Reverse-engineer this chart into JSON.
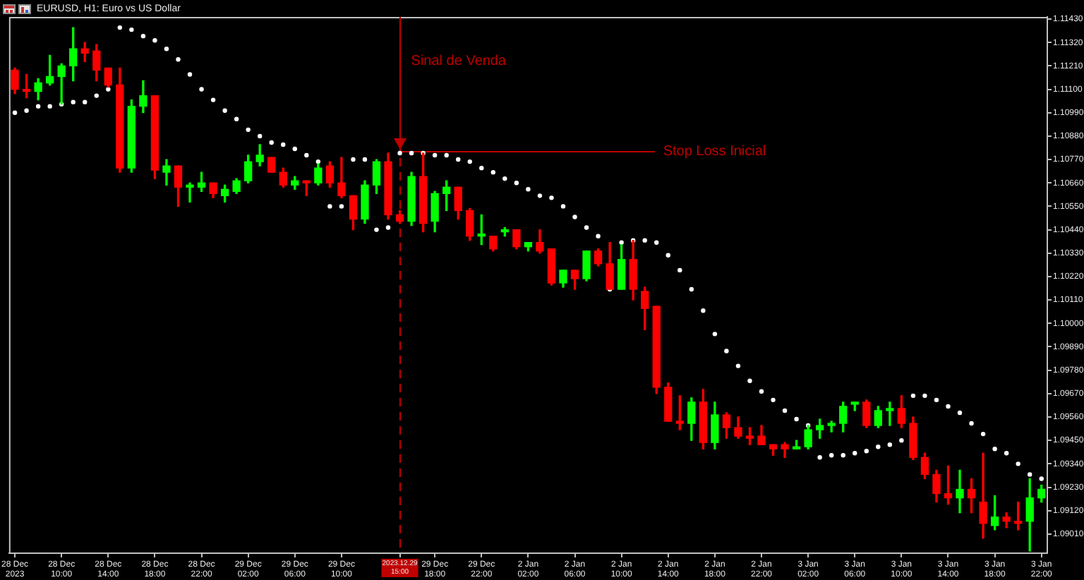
{
  "chart_data": {
    "type": "candlestick",
    "title": "EURUSD, H1: Euro vs US Dollar",
    "categories": [
      "28 Dec 2023",
      null,
      null,
      null,
      "28 Dec 10:00",
      null,
      null,
      null,
      "28 Dec 14:00",
      null,
      null,
      null,
      "28 Dec 18:00",
      null,
      null,
      null,
      "28 Dec 22:00",
      null,
      null,
      null,
      "29 Dec 02:00",
      null,
      null,
      null,
      "29 Dec 06:00",
      null,
      null,
      null,
      "29 Dec 10:00",
      null,
      null,
      null,
      null,
      "2023.12.29 15:00",
      null,
      null,
      "29 Dec 18:00",
      null,
      null,
      null,
      "29 Dec 22:00",
      null,
      null,
      null,
      "2 Jan 02:00",
      null,
      null,
      null,
      "2 Jan 06:00",
      null,
      null,
      null,
      "2 Jan 10:00",
      null,
      null,
      null,
      "2 Jan 14:00",
      null,
      null,
      null,
      "2 Jan 18:00",
      null,
      null,
      null,
      "2 Jan 22:00",
      null,
      null,
      null,
      "3 Jan 02:00",
      null,
      null,
      null,
      "3 Jan 06:00",
      null,
      null,
      null,
      "3 Jan 10:00",
      null,
      null,
      null,
      "3 Jan 14:00",
      null,
      null,
      null,
      "3 Jan 18:00",
      null,
      null,
      null,
      "3 Jan 22:00"
    ],
    "ohlc": [
      [
        1.1119,
        1.112,
        1.1108,
        1.111
      ],
      [
        1.111,
        1.1117,
        1.1106,
        1.1109
      ],
      [
        1.1109,
        1.1115,
        1.1105,
        1.1113
      ],
      [
        1.1113,
        1.1126,
        1.1112,
        1.1116
      ],
      [
        1.1116,
        1.1122,
        1.1103,
        1.1121
      ],
      [
        1.1121,
        1.1139,
        1.1114,
        1.1129
      ],
      [
        1.1129,
        1.1132,
        1.1123,
        1.1127
      ],
      [
        1.1128,
        1.1131,
        1.1114,
        1.1119
      ],
      [
        1.112,
        1.112,
        1.1111,
        1.1112
      ],
      [
        1.1112,
        1.112,
        1.1071,
        1.1073
      ],
      [
        1.1073,
        1.1105,
        1.1071,
        1.1102
      ],
      [
        1.1102,
        1.1114,
        1.1099,
        1.1107
      ],
      [
        1.1107,
        1.1107,
        1.1068,
        1.1072
      ],
      [
        1.1071,
        1.1077,
        1.1065,
        1.1074
      ],
      [
        1.1074,
        1.1074,
        1.1055,
        1.1064
      ],
      [
        1.1064,
        1.1066,
        1.1057,
        1.1065
      ],
      [
        1.1064,
        1.1071,
        1.1062,
        1.1066
      ],
      [
        1.1066,
        1.1066,
        1.1059,
        1.1061
      ],
      [
        1.106,
        1.1065,
        1.1057,
        1.1063
      ],
      [
        1.1062,
        1.1068,
        1.1061,
        1.1067
      ],
      [
        1.1067,
        1.1079,
        1.1066,
        1.1076
      ],
      [
        1.1076,
        1.1084,
        1.1074,
        1.1079
      ],
      [
        1.1078,
        1.1078,
        1.1071,
        1.1071
      ],
      [
        1.1071,
        1.1073,
        1.1064,
        1.1065
      ],
      [
        1.1065,
        1.1069,
        1.1063,
        1.1067
      ],
      [
        1.1067,
        1.1067,
        1.106,
        1.1066
      ],
      [
        1.1066,
        1.1075,
        1.1065,
        1.1073
      ],
      [
        1.1074,
        1.1076,
        1.1064,
        1.1066
      ],
      [
        1.1066,
        1.1078,
        1.1059,
        1.106
      ],
      [
        1.106,
        1.106,
        1.1044,
        1.1049
      ],
      [
        1.1049,
        1.1067,
        1.1047,
        1.1065
      ],
      [
        1.1065,
        1.1077,
        1.1061,
        1.1076
      ],
      [
        1.1076,
        1.108,
        1.1049,
        1.1051
      ],
      [
        1.1051,
        1.1053,
        1.1047,
        1.1048
      ],
      [
        1.1048,
        1.1071,
        1.1046,
        1.1069
      ],
      [
        1.1069,
        1.108,
        1.1043,
        1.1047
      ],
      [
        1.1048,
        1.1062,
        1.1043,
        1.1061
      ],
      [
        1.1061,
        1.1067,
        1.1053,
        1.1064
      ],
      [
        1.1064,
        1.1064,
        1.1049,
        1.1053
      ],
      [
        1.1053,
        1.1054,
        1.1039,
        1.1041
      ],
      [
        1.1041,
        1.1051,
        1.1037,
        1.1042
      ],
      [
        1.1041,
        1.1041,
        1.1034,
        1.1035
      ],
      [
        1.1043,
        1.1045,
        1.1041,
        1.1044
      ],
      [
        1.1044,
        1.1044,
        1.1035,
        1.1036
      ],
      [
        1.1036,
        1.1038,
        1.1034,
        1.1038
      ],
      [
        1.1038,
        1.1044,
        1.1033,
        1.1034
      ],
      [
        1.1035,
        1.1035,
        1.1018,
        1.1019
      ],
      [
        1.1019,
        1.1025,
        1.1017,
        1.1025
      ],
      [
        1.1025,
        1.1025,
        1.1016,
        1.1021
      ],
      [
        1.1021,
        1.1034,
        1.102,
        1.1034
      ],
      [
        1.1034,
        1.1035,
        1.1027,
        1.1028
      ],
      [
        1.1028,
        1.1038,
        1.1016,
        1.1016
      ],
      [
        1.1016,
        1.1037,
        1.1016,
        1.103
      ],
      [
        1.103,
        1.1039,
        1.1011,
        1.1016
      ],
      [
        1.1015,
        1.1017,
        1.0997,
        1.1007
      ],
      [
        1.1008,
        1.1008,
        1.0967,
        1.097
      ],
      [
        1.097,
        1.0972,
        1.0954,
        1.0954
      ],
      [
        1.0954,
        1.0966,
        1.095,
        1.0953
      ],
      [
        1.0953,
        1.0965,
        1.0945,
        1.0963
      ],
      [
        1.0963,
        1.0969,
        1.0941,
        1.0944
      ],
      [
        1.0944,
        1.0963,
        1.0941,
        1.0957
      ],
      [
        1.0957,
        1.0958,
        1.0946,
        1.0951
      ],
      [
        1.0951,
        1.0956,
        1.0946,
        1.0947
      ],
      [
        1.0947,
        1.0951,
        1.0943,
        1.0946
      ],
      [
        1.0947,
        1.0952,
        1.0943,
        1.0943
      ],
      [
        1.0943,
        1.0943,
        1.0938,
        1.0941
      ],
      [
        1.0943,
        1.0944,
        1.0937,
        1.0941
      ],
      [
        1.0941,
        1.0945,
        1.0941,
        1.0942
      ],
      [
        1.0942,
        1.0952,
        1.0941,
        1.095
      ],
      [
        1.095,
        1.0955,
        1.0946,
        1.0952
      ],
      [
        1.0952,
        1.0954,
        1.0949,
        1.0953
      ],
      [
        1.0953,
        1.0963,
        1.0949,
        1.0961
      ],
      [
        1.0962,
        1.0963,
        1.0959,
        1.0963
      ],
      [
        1.0963,
        1.0964,
        1.0951,
        1.0952
      ],
      [
        1.0952,
        1.0961,
        1.0951,
        1.0959
      ],
      [
        1.0959,
        1.0963,
        1.0952,
        1.096
      ],
      [
        1.096,
        1.0966,
        1.0951,
        1.0953
      ],
      [
        1.0953,
        1.0956,
        1.0936,
        1.0937
      ],
      [
        1.0937,
        1.0939,
        1.0927,
        1.0929
      ],
      [
        1.0929,
        1.0931,
        1.0916,
        1.092
      ],
      [
        1.092,
        1.0933,
        1.0915,
        1.0918
      ],
      [
        1.0918,
        1.0931,
        1.0911,
        1.0922
      ],
      [
        1.0922,
        1.0927,
        1.0911,
        1.0918
      ],
      [
        1.0916,
        1.0939,
        1.0899,
        1.0906
      ],
      [
        1.0905,
        1.0919,
        1.0903,
        1.0909
      ],
      [
        1.0909,
        1.0911,
        1.0904,
        1.0907
      ],
      [
        1.0907,
        1.0916,
        1.0903,
        1.0906
      ],
      [
        1.0907,
        1.0927,
        1.0893,
        1.0918
      ],
      [
        1.0918,
        1.0924,
        1.0916,
        1.0922
      ]
    ],
    "colors": [
      "#ff0000",
      "#ff0000",
      "#00ff00",
      "#00ff00",
      "#00ff00",
      "#00ff00",
      "#ff0000",
      "#ff0000",
      "#ff0000",
      "#ff0000",
      "#00ff00",
      "#00ff00",
      "#ff0000",
      "#00ff00",
      "#ff0000",
      "#00ff00",
      "#00ff00",
      "#ff0000",
      "#00ff00",
      "#00ff00",
      "#00ff00",
      "#00ff00",
      "#ff0000",
      "#ff0000",
      "#00ff00",
      "#ff0000",
      "#00ff00",
      "#ff0000",
      "#ff0000",
      "#ff0000",
      "#00ff00",
      "#00ff00",
      "#ff0000",
      "#ff0000",
      "#00ff00",
      "#ff0000",
      "#00ff00",
      "#00ff00",
      "#ff0000",
      "#ff0000",
      "#00ff00",
      "#ff0000",
      "#00ff00",
      "#ff0000",
      "#00ff00",
      "#ff0000",
      "#ff0000",
      "#00ff00",
      "#ff0000",
      "#00ff00",
      "#ff0000",
      "#ff0000",
      "#00ff00",
      "#ff0000",
      "#ff0000",
      "#ff0000",
      "#ff0000",
      "#ff0000",
      "#00ff00",
      "#ff0000",
      "#00ff00",
      "#ff0000",
      "#ff0000",
      "#ff0000",
      "#ff0000",
      "#ff0000",
      "#ff0000",
      "#00ff00",
      "#00ff00",
      "#00ff00",
      "#00ff00",
      "#00ff00",
      "#00ff00",
      "#ff0000",
      "#00ff00",
      "#00ff00",
      "#ff0000",
      "#ff0000",
      "#ff0000",
      "#ff0000",
      "#ff0000",
      "#00ff00",
      "#ff0000",
      "#ff0000",
      "#00ff00",
      "#ff0000",
      "#ff0000",
      "#00ff00",
      "#00ff00"
    ],
    "series": [
      {
        "type": "scatter",
        "color": "#ffffff",
        "values": [
          1.1099,
          1.11,
          1.1102,
          1.1102,
          1.1103,
          1.1104,
          1.1104,
          1.1107,
          1.111,
          1.1139,
          1.1138,
          1.1135,
          1.1133,
          1.1129,
          1.1124,
          1.1117,
          1.111,
          1.1105,
          1.11,
          1.1096,
          1.1091,
          1.1088,
          1.1085,
          1.1084,
          1.1082,
          1.1079,
          1.1076,
          1.1055,
          1.1055,
          1.1077,
          1.1077,
          1.1044,
          1.1045,
          1.108,
          1.108,
          1.108,
          1.1079,
          1.1079,
          1.1077,
          1.1076,
          1.1073,
          1.1071,
          1.1068,
          1.1066,
          1.1063,
          1.106,
          1.1059,
          1.1055,
          1.105,
          1.1045,
          1.1041,
          1.1016,
          1.1038,
          1.1039,
          1.1039,
          1.1038,
          1.1032,
          1.1025,
          1.1016,
          1.1006,
          1.0995,
          1.0987,
          1.098,
          1.0973,
          1.0968,
          1.0964,
          1.0959,
          1.0955,
          1.0952,
          1.0937,
          1.0938,
          1.0938,
          1.0939,
          1.094,
          1.0942,
          1.0943,
          1.0945,
          1.0966,
          1.0966,
          1.0964,
          1.0961,
          1.0958,
          1.0953,
          1.0948,
          1.0941,
          1.0939,
          1.0934,
          1.0929,
          1.0927
        ]
      }
    ],
    "marker": "circle",
    "ylim": [
      1.0892,
      1.1144
    ],
    "yticks": [
      {
        "value": 1.0901,
        "label": "1.09010"
      },
      {
        "value": 1.0912,
        "label": "1.09120"
      },
      {
        "value": 1.0923,
        "label": "1.09230"
      },
      {
        "value": 1.0934,
        "label": "1.09340"
      },
      {
        "value": 1.0945,
        "label": "1.09450"
      },
      {
        "value": 1.0956,
        "label": "1.09560"
      },
      {
        "value": 1.0967,
        "label": "1.09670"
      },
      {
        "value": 1.0978,
        "label": "1.09780"
      },
      {
        "value": 1.0989,
        "label": "1.09890"
      },
      {
        "value": 1.1,
        "label": "1.10000"
      },
      {
        "value": 1.1011,
        "label": "1.10110"
      },
      {
        "value": 1.1022,
        "label": "1.10220"
      },
      {
        "value": 1.1033,
        "label": "1.10330"
      },
      {
        "value": 1.1044,
        "label": "1.10440"
      },
      {
        "value": 1.1055,
        "label": "1.10550"
      },
      {
        "value": 1.1066,
        "label": "1.10660"
      },
      {
        "value": 1.1077,
        "label": "1.10770"
      },
      {
        "value": 1.1088,
        "label": "1.10880"
      },
      {
        "value": 1.1099,
        "label": "1.10990"
      },
      {
        "value": 1.111,
        "label": "1.11100"
      },
      {
        "value": 1.1121,
        "label": "1.11210"
      },
      {
        "value": 1.1132,
        "label": "1.11320"
      },
      {
        "value": 1.1143,
        "label": "1.11430"
      }
    ],
    "ref_lines": [
      {
        "axis": "x",
        "value": "2023.12.29 15:00",
        "label": "Sinal de Venda",
        "color": "#c00000",
        "line_style": "dashed"
      },
      {
        "axis": "y",
        "value": 1.1081,
        "label": "Stop Loss Inicial",
        "color": "#c00000"
      }
    ]
  }
}
